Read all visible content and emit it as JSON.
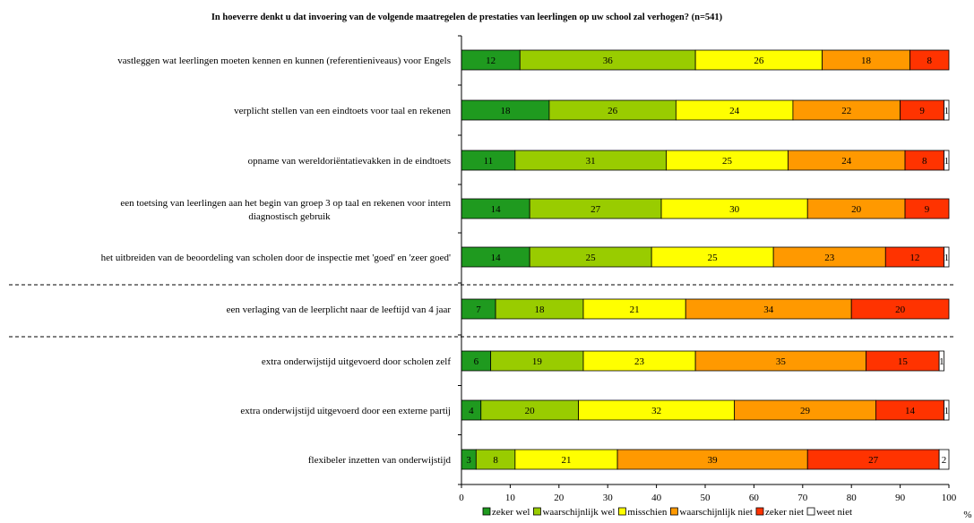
{
  "chart_data": {
    "type": "bar",
    "orientation": "horizontal",
    "stacked": true,
    "title": "In hoeverre denkt u dat invoering van de volgende maatregelen de prestaties van leerlingen op uw school zal verhogen? (n=541)",
    "xlabel": "%",
    "xlim": [
      0,
      100
    ],
    "xticks": [
      0,
      10,
      20,
      30,
      40,
      50,
      60,
      70,
      80,
      90,
      100
    ],
    "grid": false,
    "legend_position": "bottom",
    "categories": [
      [
        "vastleggen wat leerlingen moeten kennen en kunnen (referentieniveaus) voor Engels"
      ],
      [
        "verplicht stellen van een eindtoets voor taal en rekenen"
      ],
      [
        "opname van wereldoriëntatievakken in de eindtoets"
      ],
      [
        "een toetsing van leerlingen aan het begin van groep 3 op taal en rekenen voor intern",
        "diagnostisch gebruik"
      ],
      [
        "het uitbreiden van de beoordeling van scholen door de inspectie met 'goed' en 'zeer goed'"
      ],
      [
        "een verlaging van de leerplicht naar de leeftijd van 4 jaar"
      ],
      [
        "extra onderwijstijd uitgevoerd door scholen zelf"
      ],
      [
        "extra onderwijstijd uitgevoerd door een externe partij"
      ],
      [
        "flexibeler inzetten van onderwijstijd"
      ]
    ],
    "separators_after": [
      4,
      5
    ],
    "series": [
      {
        "name": "zeker wel",
        "color": "#1f9a1f",
        "values": [
          12,
          18,
          11,
          14,
          14,
          7,
          6,
          4,
          3
        ]
      },
      {
        "name": "waarschijnlijk wel",
        "color": "#99cc00",
        "values": [
          36,
          26,
          31,
          27,
          25,
          18,
          19,
          20,
          8
        ]
      },
      {
        "name": "misschien",
        "color": "#ffff00",
        "values": [
          26,
          24,
          25,
          30,
          25,
          21,
          23,
          32,
          21
        ]
      },
      {
        "name": "waarschijnlijk niet",
        "color": "#ff9900",
        "values": [
          18,
          22,
          24,
          20,
          23,
          34,
          35,
          29,
          39
        ]
      },
      {
        "name": "zeker niet",
        "color": "#ff3300",
        "values": [
          8,
          9,
          8,
          9,
          12,
          20,
          15,
          14,
          27
        ]
      },
      {
        "name": "weet niet",
        "color": "#ffffff",
        "values": [
          0,
          1,
          1,
          0,
          1,
          0,
          1,
          1,
          2
        ]
      }
    ]
  }
}
